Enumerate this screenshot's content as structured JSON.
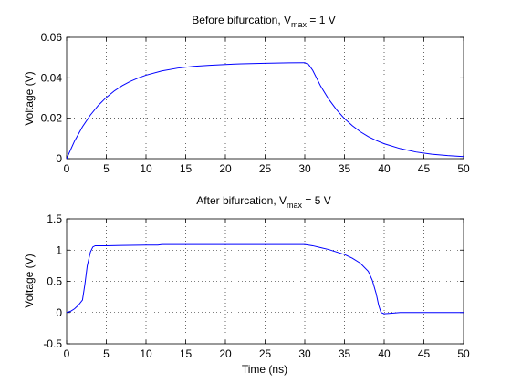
{
  "chart_data": [
    {
      "type": "line",
      "title_prefix": "Before bifurcation, V",
      "title_subscript": "max",
      "title_suffix": " = 1 V",
      "xlabel": "",
      "ylabel": "Voltage (V)",
      "xlim": [
        0,
        50
      ],
      "ylim": [
        0,
        0.06
      ],
      "xticks": [
        0,
        5,
        10,
        15,
        20,
        25,
        30,
        35,
        40,
        45,
        50
      ],
      "yticks": [
        0,
        0.02,
        0.04,
        0.06
      ],
      "ytick_labels": [
        "0",
        "0.02",
        "0.04",
        "0.06"
      ],
      "grid": true,
      "color": "#0000ff",
      "series": [
        {
          "x": [
            0,
            1,
            2,
            3,
            4,
            5,
            6,
            7,
            8,
            9,
            10,
            12,
            14,
            16,
            18,
            20,
            22,
            25,
            28,
            30,
            30.5,
            31,
            32,
            33,
            34,
            35,
            36,
            37,
            38,
            39,
            40,
            42,
            44,
            46,
            48,
            50
          ],
          "y": [
            0,
            0.0087,
            0.0158,
            0.0216,
            0.0264,
            0.0303,
            0.0335,
            0.0361,
            0.0382,
            0.0399,
            0.0413,
            0.0434,
            0.0448,
            0.0457,
            0.0462,
            0.0466,
            0.0469,
            0.0472,
            0.0474,
            0.0475,
            0.0465,
            0.0437,
            0.0359,
            0.0295,
            0.0242,
            0.0198,
            0.0163,
            0.0133,
            0.0109,
            0.009,
            0.0074,
            0.005,
            0.0033,
            0.0022,
            0.0015,
            0.001
          ]
        }
      ]
    },
    {
      "type": "line",
      "title_prefix": "After bifurcation, V",
      "title_subscript": "max",
      "title_suffix": " = 5 V",
      "xlabel": "Time (ns)",
      "ylabel": "Voltage (V)",
      "xlim": [
        0,
        50
      ],
      "ylim": [
        -0.5,
        1.5
      ],
      "xticks": [
        0,
        5,
        10,
        15,
        20,
        25,
        30,
        35,
        40,
        45,
        50
      ],
      "yticks": [
        -0.5,
        0,
        0.5,
        1,
        1.5
      ],
      "ytick_labels": [
        "-0.5",
        "0",
        "0.5",
        "1",
        "1.5"
      ],
      "grid": true,
      "color": "#0000ff",
      "series": [
        {
          "x": [
            0,
            0.5,
            1,
            1.5,
            2,
            2.3,
            2.6,
            3,
            3.3,
            3.6,
            4,
            5,
            7,
            10,
            11.5,
            12,
            15,
            20,
            25,
            28,
            30,
            31,
            32,
            33,
            34,
            35,
            36,
            37,
            38,
            38.5,
            39,
            39.3,
            39.6,
            40,
            41,
            42,
            45,
            50
          ],
          "y": [
            0,
            0.02,
            0.06,
            0.12,
            0.2,
            0.45,
            0.75,
            0.97,
            1.05,
            1.07,
            1.07,
            1.07,
            1.075,
            1.08,
            1.08,
            1.09,
            1.09,
            1.09,
            1.09,
            1.09,
            1.09,
            1.07,
            1.04,
            1.01,
            0.97,
            0.93,
            0.87,
            0.79,
            0.66,
            0.52,
            0.3,
            0.12,
            0.0,
            -0.02,
            -0.01,
            0.0,
            0.0,
            0.0
          ]
        }
      ]
    }
  ]
}
